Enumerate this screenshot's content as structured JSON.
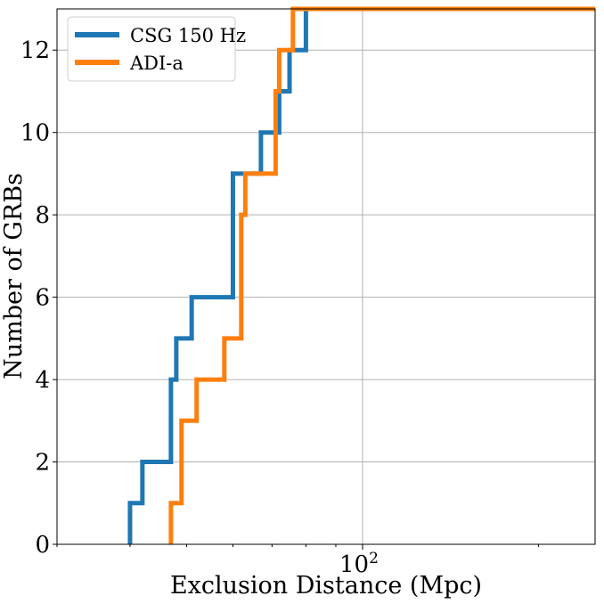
{
  "chart_data": {
    "type": "line",
    "subtype": "cumulative-step",
    "xscale": "log",
    "xlim": [
      30,
      250
    ],
    "ylim": [
      0,
      13
    ],
    "xlabel": "Exclusion Distance (Mpc)",
    "ylabel": "Number of GRBs",
    "xticks": [
      {
        "value": 100,
        "label_base": "10",
        "label_exp": "2"
      }
    ],
    "yticks": [
      0,
      2,
      4,
      6,
      8,
      10,
      12
    ],
    "grid": true,
    "legend": "top-left",
    "series": [
      {
        "name": "CSG 150 Hz",
        "color": "#1f77b4",
        "x": [
          40,
          42,
          47,
          48,
          51,
          60,
          67,
          72,
          75,
          80,
          81
        ],
        "y": [
          1,
          2,
          4,
          5,
          6,
          9,
          10,
          11,
          12,
          13,
          13
        ]
      },
      {
        "name": "ADI-a",
        "color": "#ff7f0e",
        "x": [
          47,
          49,
          51,
          52,
          58,
          62,
          63,
          70,
          71,
          72,
          76
        ],
        "y": [
          1,
          3,
          3,
          4,
          5,
          8,
          9,
          9,
          11,
          12,
          13
        ]
      }
    ]
  }
}
